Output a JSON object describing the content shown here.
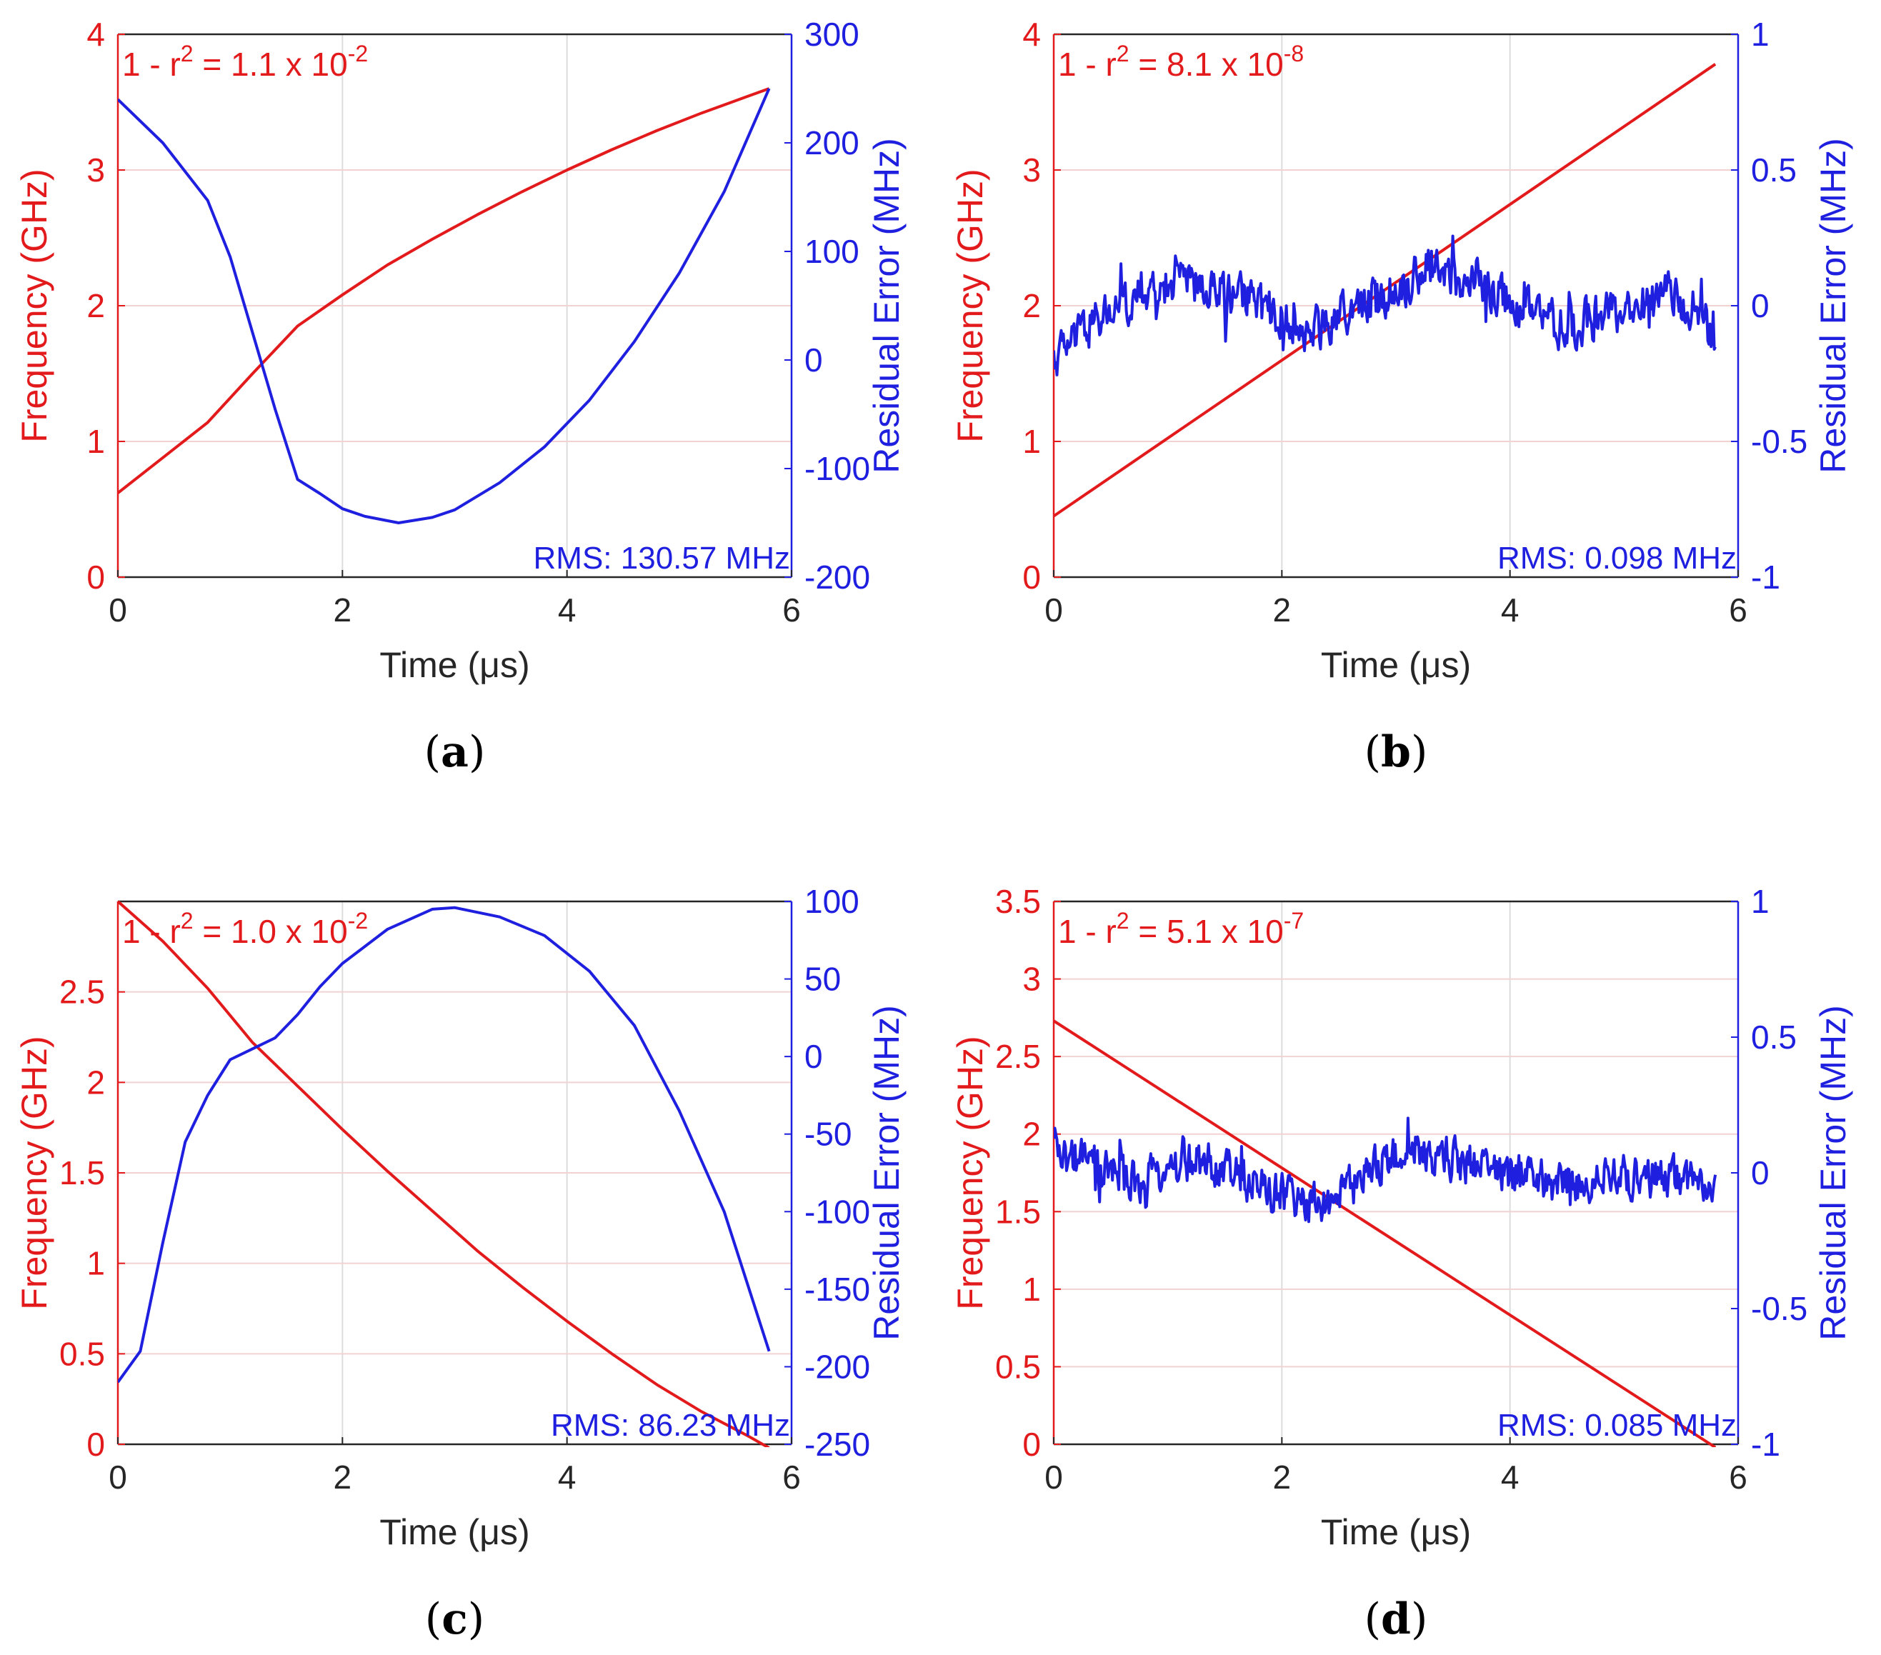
{
  "colors": {
    "frequency": "#e31a1c",
    "residual": "#1f1fdf",
    "axis": "#262626",
    "grid": "#dcdcdc",
    "grid_pink": "#f2d2d2"
  },
  "chart_data": [
    {
      "type": "line",
      "panel": "a",
      "caption_letter": "a",
      "xlabel": "Time (μs)",
      "ylabel_left": "Frequency (GHz)",
      "ylabel_right": "Residual Error (MHz)",
      "xlim": [
        0,
        6
      ],
      "xticks": [
        0,
        2,
        4,
        6
      ],
      "ylim_left": [
        0,
        4
      ],
      "yticks_left": [
        0,
        1,
        2,
        3,
        4
      ],
      "ylim_right": [
        -200,
        300
      ],
      "yticks_right": [
        -200,
        -100,
        0,
        100,
        200,
        300
      ],
      "annotation": {
        "base": "1 - r",
        "sup1": "2",
        "mid": " = 1.1 x 10",
        "sup2": "-2"
      },
      "rms_label": "RMS: 130.57 MHz",
      "series": [
        {
          "name": "Frequency",
          "axis": "left",
          "x": [
            0,
            0.4,
            0.8,
            1.2,
            1.6,
            2.0,
            2.4,
            2.8,
            3.2,
            3.6,
            4.0,
            4.4,
            4.8,
            5.2,
            5.6,
            5.8
          ],
          "values": [
            0.62,
            0.88,
            1.14,
            1.5,
            1.85,
            2.08,
            2.3,
            2.49,
            2.67,
            2.84,
            3.0,
            3.15,
            3.29,
            3.42,
            3.54,
            3.6
          ]
        },
        {
          "name": "Residual Error",
          "axis": "right",
          "x": [
            0,
            0.4,
            0.8,
            1.0,
            1.2,
            1.4,
            1.6,
            1.8,
            2.0,
            2.2,
            2.5,
            2.8,
            3.0,
            3.4,
            3.8,
            4.2,
            4.6,
            5.0,
            5.4,
            5.8
          ],
          "values": [
            240,
            200,
            147,
            95,
            25,
            -45,
            -110,
            -123,
            -137,
            -144,
            -150,
            -145,
            -138,
            -113,
            -80,
            -37,
            17,
            80,
            155,
            250
          ]
        }
      ]
    },
    {
      "type": "line",
      "panel": "b",
      "caption_letter": "b",
      "xlabel": "Time (μs)",
      "ylabel_left": "Frequency (GHz)",
      "ylabel_right": "Residual Error (MHz)",
      "xlim": [
        0,
        6
      ],
      "xticks": [
        0,
        2,
        4,
        6
      ],
      "ylim_left": [
        0,
        4
      ],
      "yticks_left": [
        0,
        1,
        2,
        3,
        4
      ],
      "ylim_right": [
        -1,
        1
      ],
      "yticks_right": [
        -1,
        -0.5,
        0,
        0.5,
        1
      ],
      "annotation": {
        "base": "1 - r",
        "sup1": "2",
        "mid": " = 8.1 x 10",
        "sup2": "-8"
      },
      "rms_label": "RMS: 0.098 MHz",
      "series": [
        {
          "name": "Frequency",
          "axis": "left",
          "x": [
            0,
            5.8
          ],
          "values": [
            0.45,
            3.78
          ]
        },
        {
          "name": "Residual Error",
          "axis": "right",
          "x": [
            0,
            0.1,
            0.2,
            0.3,
            0.4,
            0.5,
            0.6,
            0.7,
            0.8,
            0.9,
            1.0,
            1.1,
            1.2,
            1.3,
            1.4,
            1.5,
            1.6,
            1.7,
            1.8,
            1.9,
            2.0,
            2.1,
            2.2,
            2.3,
            2.4,
            2.5,
            2.6,
            2.7,
            2.8,
            2.9,
            3.0,
            3.1,
            3.2,
            3.3,
            3.4,
            3.5,
            3.6,
            3.7,
            3.8,
            3.9,
            4.0,
            4.1,
            4.2,
            4.3,
            4.4,
            4.5,
            4.6,
            4.7,
            4.8,
            4.9,
            5.0,
            5.1,
            5.2,
            5.3,
            5.4,
            5.5,
            5.6,
            5.7,
            5.8
          ],
          "values": [
            -0.2,
            -0.15,
            -0.12,
            -0.08,
            -0.05,
            -0.02,
            0.0,
            0.02,
            0.03,
            0.05,
            0.08,
            0.1,
            0.08,
            0.06,
            0.07,
            0.05,
            0.04,
            0.02,
            0.0,
            -0.02,
            -0.05,
            -0.08,
            -0.1,
            -0.08,
            -0.06,
            -0.04,
            -0.02,
            0.0,
            0.02,
            0.04,
            0.06,
            0.08,
            0.12,
            0.16,
            0.14,
            0.1,
            0.08,
            0.12,
            0.06,
            0.03,
            0.02,
            0.0,
            -0.02,
            -0.05,
            -0.07,
            -0.08,
            -0.06,
            -0.05,
            -0.04,
            -0.03,
            -0.02,
            -0.01,
            0.0,
            0.02,
            0.04,
            0.02,
            0.0,
            -0.05,
            -0.16
          ],
          "noise": 0.07
        }
      ]
    },
    {
      "type": "line",
      "panel": "c",
      "caption_letter": "c",
      "xlabel": "Time (μs)",
      "ylabel_left": "Frequency (GHz)",
      "ylabel_right": "Residual Error (MHz)",
      "xlim": [
        0,
        6
      ],
      "xticks": [
        0,
        2,
        4,
        6
      ],
      "ylim_left": [
        0,
        3
      ],
      "yticks_left": [
        0,
        0.5,
        1,
        1.5,
        2,
        2.5
      ],
      "ylim_right": [
        -250,
        100
      ],
      "yticks_right": [
        -250,
        -200,
        -150,
        -100,
        -50,
        0,
        50,
        100
      ],
      "annotation": {
        "base": "1 - r",
        "sup1": "2",
        "mid": " = 1.0 x 10",
        "sup2": "-2"
      },
      "rms_label": "RMS: 86.23 MHz",
      "series": [
        {
          "name": "Frequency",
          "axis": "left",
          "x": [
            0,
            0.4,
            0.8,
            1.2,
            1.6,
            2.0,
            2.4,
            2.8,
            3.2,
            3.6,
            4.0,
            4.4,
            4.8,
            5.2,
            5.6,
            5.8
          ],
          "values": [
            3.0,
            2.78,
            2.52,
            2.22,
            1.98,
            1.74,
            1.51,
            1.29,
            1.07,
            0.87,
            0.68,
            0.5,
            0.33,
            0.18,
            0.05,
            -0.02
          ]
        },
        {
          "name": "Residual Error",
          "axis": "right",
          "x": [
            0,
            0.2,
            0.4,
            0.6,
            0.8,
            1.0,
            1.2,
            1.4,
            1.6,
            1.8,
            2.0,
            2.4,
            2.8,
            3.0,
            3.4,
            3.8,
            4.2,
            4.6,
            5.0,
            5.4,
            5.8
          ],
          "values": [
            -210,
            -190,
            -120,
            -55,
            -25,
            -2,
            5,
            12,
            27,
            45,
            60,
            82,
            95,
            96,
            90,
            78,
            55,
            20,
            -35,
            -100,
            -190
          ]
        }
      ]
    },
    {
      "type": "line",
      "panel": "d",
      "caption_letter": "d",
      "xlabel": "Time (μs)",
      "ylabel_left": "Frequency (GHz)",
      "ylabel_right": "Residual Error (MHz)",
      "xlim": [
        0,
        6
      ],
      "xticks": [
        0,
        2,
        4,
        6
      ],
      "ylim_left": [
        0,
        3.5
      ],
      "yticks_left": [
        0,
        0.5,
        1,
        1.5,
        2,
        2.5,
        3,
        3.5
      ],
      "ylim_right": [
        -1,
        1
      ],
      "yticks_right": [
        -1,
        -0.5,
        0,
        0.5,
        1
      ],
      "annotation": {
        "base": "1 - r",
        "sup1": "2",
        "mid": " = 5.1 x 10",
        "sup2": "-7"
      },
      "rms_label": "RMS: 0.085 MHz",
      "series": [
        {
          "name": "Frequency",
          "axis": "left",
          "x": [
            0,
            5.8
          ],
          "values": [
            2.73,
            -0.02
          ]
        },
        {
          "name": "Residual Error",
          "axis": "right",
          "x": [
            0,
            0.2,
            0.4,
            0.6,
            0.8,
            1.0,
            1.2,
            1.4,
            1.6,
            1.8,
            2.0,
            2.2,
            2.4,
            2.6,
            2.8,
            3.0,
            3.2,
            3.4,
            3.6,
            3.8,
            4.0,
            4.2,
            4.4,
            4.6,
            4.8,
            5.0,
            5.2,
            5.4,
            5.6,
            5.8
          ],
          "values": [
            0.08,
            0.05,
            0.02,
            -0.02,
            -0.03,
            0.02,
            0.04,
            0.03,
            0.0,
            -0.05,
            -0.08,
            -0.1,
            -0.12,
            -0.06,
            0.02,
            0.06,
            0.08,
            0.06,
            0.04,
            0.02,
            0.0,
            -0.02,
            -0.04,
            -0.03,
            -0.02,
            -0.02,
            -0.03,
            -0.02,
            -0.01,
            -0.03
          ],
          "noise": 0.07
        }
      ]
    }
  ]
}
